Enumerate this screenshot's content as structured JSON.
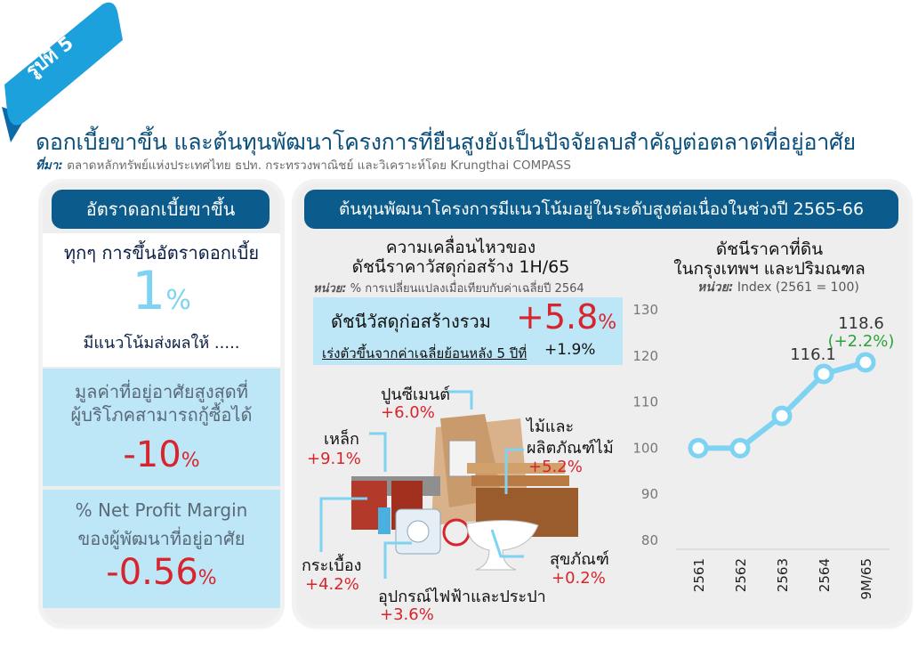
{
  "figure_tag": "รูปที่ 5",
  "title": "ดอกเบี้ยขาขึ้น และต้นทุนพัฒนาโครงการที่ยืนสูงยังเป็นปัจจัยลบสำคัญต่อตลาดที่อยู่อาศัย",
  "source": {
    "label": "ที่มา:",
    "text": " ตลาดหลักทรัพย์แห่งประเทศไทย ธปท. กระทรวงพาณิชย์ และวิเคราะห์โดย Krungthai COMPASS"
  },
  "left_panel": {
    "header": "อัตราดอกเบี้ยขาขึ้น",
    "intro_line": "ทุกๆ การขึ้นอัตราดอกเบี้ย",
    "big_value": "1",
    "big_unit": "%",
    "intro_tail": "มีแนวโน้มส่งผลให้ .....",
    "box1_line1": "มูลค่าที่อยู่อาศัยสูงสุดที่",
    "box1_line2": "ผู้บริโภคสามารถกู้ซื้อได้",
    "box1_value": "-10",
    "box1_unit": "%",
    "box2_line1": "% Net Profit Margin",
    "box2_line2": "ของผู้พัฒนาที่อยู่อาศัย",
    "box2_value": "-0.56",
    "box2_unit": "%"
  },
  "right_panel": {
    "header": "ต้นทุนพัฒนาโครงการมีแนวโน้มอยู่ในระดับสูงต่อเนื่องในช่วงปี 2565-66",
    "materials": {
      "title_line1": "ความเคลื่อนไหวของ",
      "title_line2": "ดัชนีราคาวัสดุก่อสร้าง 1H/65",
      "unit_label": "หน่วย:",
      "unit_text": " % การเปลี่ยนแปลงเมื่อเทียบกับค่าเฉลี่ยปี 2564",
      "total_label": "ดัชนีวัสดุก่อสร้างรวม",
      "total_value": "+5.8",
      "total_unit": "%",
      "avg_label": "เร่งตัวขึ้นจากค่าเฉลี่ยย้อนหลัง 5 ปีที่",
      "avg_value": "+1.9%",
      "items": [
        {
          "name": "ปูนซีเมนต์",
          "value": "+6.0%"
        },
        {
          "name": "เหล็ก",
          "value": "+9.1%"
        },
        {
          "name_line1": "ไม้และ",
          "name_line2": "ผลิตภัณฑ์ไม้",
          "value": "+5.2%"
        },
        {
          "name": "กระเบื้อง",
          "value": "+4.2%"
        },
        {
          "name": "อุปกรณ์ไฟฟ้าและประปา",
          "value": "+3.6%"
        },
        {
          "name": "สุขภัณฑ์",
          "value": "+0.2%"
        }
      ]
    }
  },
  "chart_data": {
    "type": "line",
    "title": "ดัชนีราคาที่ดิน ในกรุงเทพฯ และปริมณฑล",
    "title_line1": "ดัชนีราคาที่ดิน",
    "title_line2": "ในกรุงเทพฯ และปริมณฑล",
    "unit_label": "หน่วย:",
    "unit_text": " Index (2561 = 100)",
    "categories": [
      "2561",
      "2562",
      "2563",
      "2564",
      "9M/65"
    ],
    "values": [
      100,
      100,
      107,
      116.1,
      118.6
    ],
    "data_labels": [
      "",
      "",
      "",
      "116.1",
      "118.6"
    ],
    "annotation": "(+2.2%)",
    "ylim": [
      80,
      130
    ],
    "yticks": [
      "80",
      "90",
      "100",
      "110",
      "120",
      "130"
    ],
    "line_color": "#7fd3f2",
    "grid": false
  },
  "colors": {
    "navy": "#0b5c8c",
    "red": "#d8242c",
    "light_blue": "#bde6f7",
    "tag_blue": "#1ca1dd",
    "green": "#2aa33a"
  }
}
